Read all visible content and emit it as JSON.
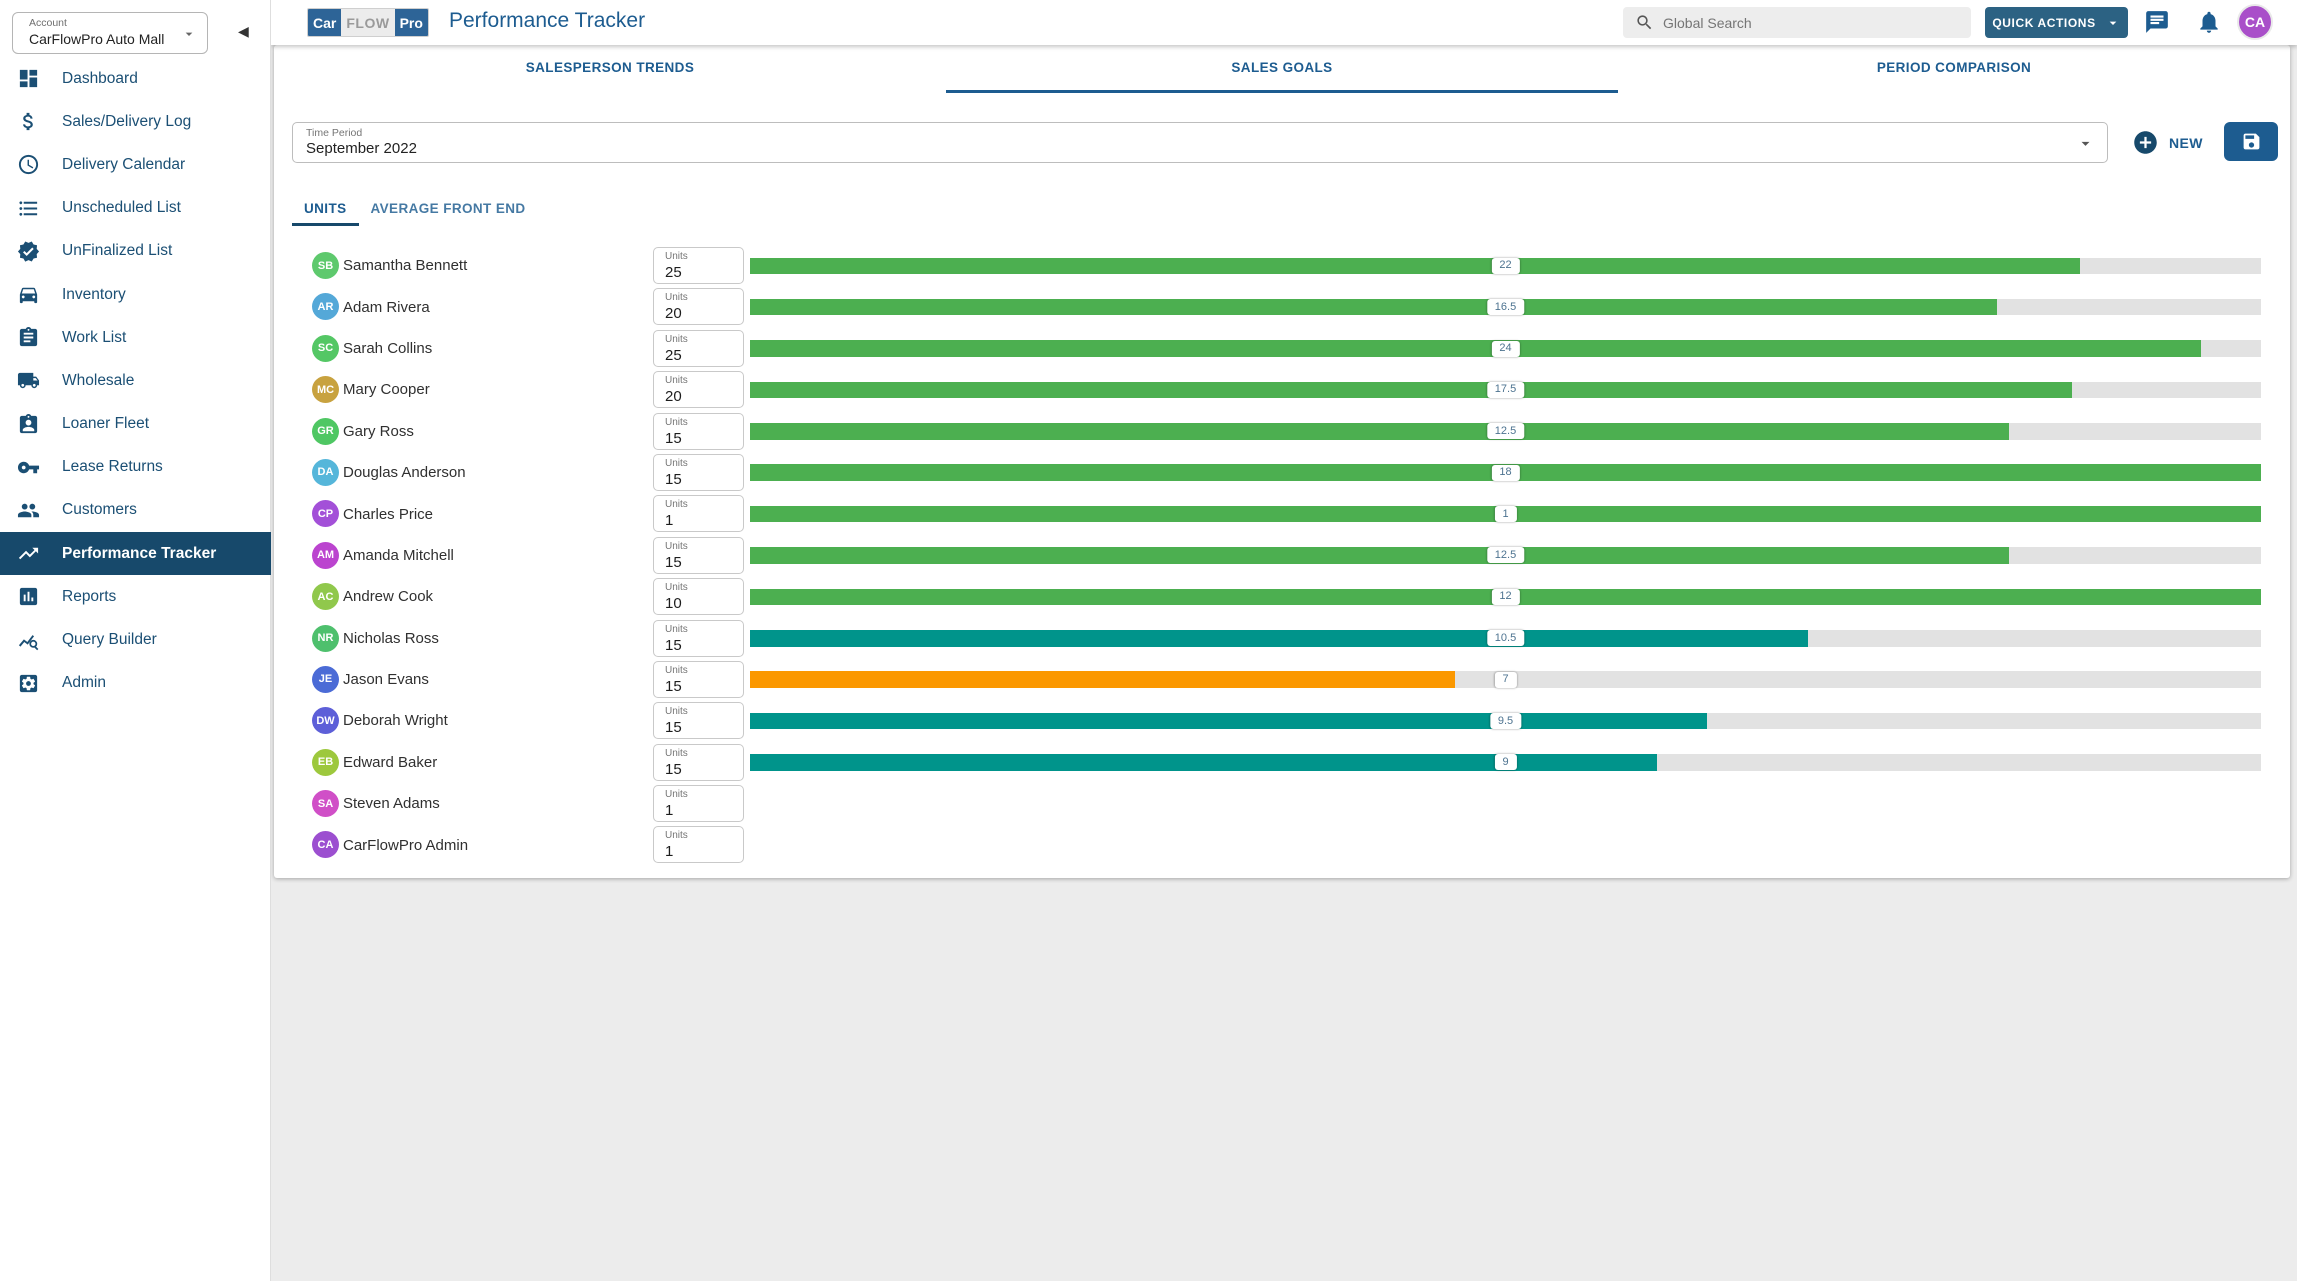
{
  "account": {
    "label": "Account",
    "value": "CarFlowPro Auto Mall"
  },
  "brand": {
    "logo_car": "Car",
    "logo_flow": "FLOW",
    "logo_pro": "Pro",
    "page_title": "Performance Tracker"
  },
  "header": {
    "search_placeholder": "Global Search",
    "quick_actions_label": "QUICK ACTIONS",
    "avatar_initials": "CA"
  },
  "sidebar": {
    "items": [
      {
        "label": "Dashboard",
        "icon": "dashboard-icon",
        "active": false
      },
      {
        "label": "Sales/Delivery Log",
        "icon": "dollar-icon",
        "active": false
      },
      {
        "label": "Delivery Calendar",
        "icon": "clock-icon",
        "active": false
      },
      {
        "label": "Unscheduled List",
        "icon": "list-icon",
        "active": false
      },
      {
        "label": "UnFinalized List",
        "icon": "verified-icon",
        "active": false
      },
      {
        "label": "Inventory",
        "icon": "car-icon",
        "active": false
      },
      {
        "label": "Work List",
        "icon": "clipboard-icon",
        "active": false
      },
      {
        "label": "Wholesale",
        "icon": "truck-icon",
        "active": false
      },
      {
        "label": "Loaner Fleet",
        "icon": "person-badge-icon",
        "active": false
      },
      {
        "label": "Lease Returns",
        "icon": "key-icon",
        "active": false
      },
      {
        "label": "Customers",
        "icon": "people-icon",
        "active": false
      },
      {
        "label": "Performance Tracker",
        "icon": "trend-icon",
        "active": true
      },
      {
        "label": "Reports",
        "icon": "bar-chart-icon",
        "active": false
      },
      {
        "label": "Query Builder",
        "icon": "query-icon",
        "active": false
      },
      {
        "label": "Admin",
        "icon": "gear-icon",
        "active": false
      }
    ]
  },
  "tabs": [
    {
      "label": "SALESPERSON TRENDS",
      "active": false
    },
    {
      "label": "SALES GOALS",
      "active": true
    },
    {
      "label": "PERIOD COMPARISON",
      "active": false
    }
  ],
  "controls": {
    "time_period_label": "Time Period",
    "time_period_value": "September 2022",
    "new_label": "NEW"
  },
  "subtabs": [
    {
      "label": "UNITS",
      "active": true
    },
    {
      "label": "AVERAGE FRONT END",
      "active": false
    }
  ],
  "goals": {
    "field_label": "Units",
    "rows": [
      {
        "name": "Samantha Bennett",
        "initials": "SB",
        "color": "#5ec96d",
        "goal": 25,
        "actual": 22,
        "bar_color": "green"
      },
      {
        "name": "Adam Rivera",
        "initials": "AR",
        "color": "#54a8d8",
        "goal": 20,
        "actual": 16.5,
        "bar_color": "green"
      },
      {
        "name": "Sarah Collins",
        "initials": "SC",
        "color": "#54c765",
        "goal": 25,
        "actual": 24,
        "bar_color": "green"
      },
      {
        "name": "Mary Cooper",
        "initials": "MC",
        "color": "#c8a23f",
        "goal": 20,
        "actual": 17.5,
        "bar_color": "green"
      },
      {
        "name": "Gary Ross",
        "initials": "GR",
        "color": "#4fc763",
        "goal": 15,
        "actual": 12.5,
        "bar_color": "green"
      },
      {
        "name": "Douglas Anderson",
        "initials": "DA",
        "color": "#55b6da",
        "goal": 15,
        "actual": 18,
        "bar_color": "green"
      },
      {
        "name": "Charles Price",
        "initials": "CP",
        "color": "#a350d8",
        "goal": 1,
        "actual": 1,
        "bar_color": "green"
      },
      {
        "name": "Amanda Mitchell",
        "initials": "AM",
        "color": "#bb44cf",
        "goal": 15,
        "actual": 12.5,
        "bar_color": "green"
      },
      {
        "name": "Andrew Cook",
        "initials": "AC",
        "color": "#90c84c",
        "goal": 10,
        "actual": 12,
        "bar_color": "green"
      },
      {
        "name": "Nicholas Ross",
        "initials": "NR",
        "color": "#4ec06d",
        "goal": 15,
        "actual": 10.5,
        "bar_color": "teal"
      },
      {
        "name": "Jason Evans",
        "initials": "JE",
        "color": "#4b6bd6",
        "goal": 15,
        "actual": 7,
        "bar_color": "orange"
      },
      {
        "name": "Deborah Wright",
        "initials": "DW",
        "color": "#5d5fd8",
        "goal": 15,
        "actual": 9.5,
        "bar_color": "teal"
      },
      {
        "name": "Edward Baker",
        "initials": "EB",
        "color": "#9dc83d",
        "goal": 15,
        "actual": 9,
        "bar_color": "teal"
      },
      {
        "name": "Steven Adams",
        "initials": "SA",
        "color": "#d04fc7",
        "goal": 1,
        "actual": null,
        "bar_color": null
      },
      {
        "name": "CarFlowPro Admin",
        "initials": "CA",
        "color": "#9c4fd0",
        "goal": 1,
        "actual": null,
        "bar_color": null
      }
    ]
  },
  "colors": {
    "green": "#4caf50",
    "teal": "#00948b",
    "orange": "#fb9800",
    "track": "#e2e2e2",
    "navy": "#1d5c90",
    "active_bg": "#17496b"
  }
}
